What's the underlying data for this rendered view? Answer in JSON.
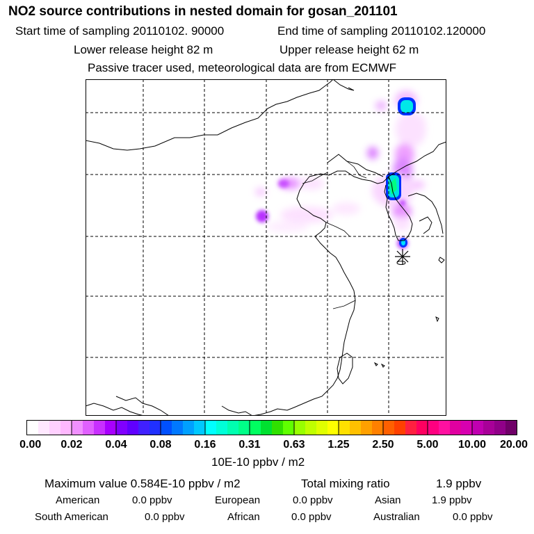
{
  "header": {
    "title": "NO2 source contributions in nested domain for gosan_201101",
    "start_sampling": "Start time of sampling 20110102. 90000",
    "end_sampling": "End time of sampling 20110102.120000",
    "lower_release": "Lower release height   82 m",
    "upper_release": "Upper release height   62 m",
    "tracer_note": "Passive tracer used, meteorological data are from ECMWF"
  },
  "colorbar": {
    "ticks": [
      "0.00",
      "0.02",
      "0.04",
      "0.08",
      "0.16",
      "0.31",
      "0.63",
      "1.25",
      "2.50",
      "5.00",
      "10.00",
      "20.00"
    ],
    "colors": [
      "#ffffff",
      "#ffe8ff",
      "#ffd0ff",
      "#ffb8ff",
      "#f090ff",
      "#e060ff",
      "#c830ff",
      "#a800ff",
      "#8000ff",
      "#6000ff",
      "#4020ff",
      "#2030ff",
      "#0050ff",
      "#0078ff",
      "#00a0ff",
      "#00c8ff",
      "#00ffff",
      "#00ffd8",
      "#00ffb0",
      "#00ff88",
      "#00ff60",
      "#00e030",
      "#30e000",
      "#60ff00",
      "#98ff00",
      "#c0ff00",
      "#e0ff00",
      "#ffff00",
      "#ffe000",
      "#ffc000",
      "#ffa000",
      "#ff8000",
      "#ff6000",
      "#ff4000",
      "#ff2040",
      "#ff0060",
      "#ff0080",
      "#ff10a0",
      "#e000a0",
      "#d800b0",
      "#c000b0",
      "#a80098",
      "#900088",
      "#700068"
    ],
    "units": "10E-10 ppbv / m2"
  },
  "summary": {
    "max_label": "Maximum value  0.584E-10 ppbv / m2",
    "total_label": "Total mixing ratio",
    "total_value": "1.9 ppbv",
    "regions": [
      {
        "name": "American",
        "value": "0.0 ppbv"
      },
      {
        "name": "European",
        "value": "0.0 ppbv"
      },
      {
        "name": "Asian",
        "value": "1.9 ppbv"
      },
      {
        "name": "South American",
        "value": "0.0 ppbv"
      },
      {
        "name": "African",
        "value": "0.0 ppbv"
      },
      {
        "name": "Australian",
        "value": "0.0 ppbv"
      }
    ]
  }
}
